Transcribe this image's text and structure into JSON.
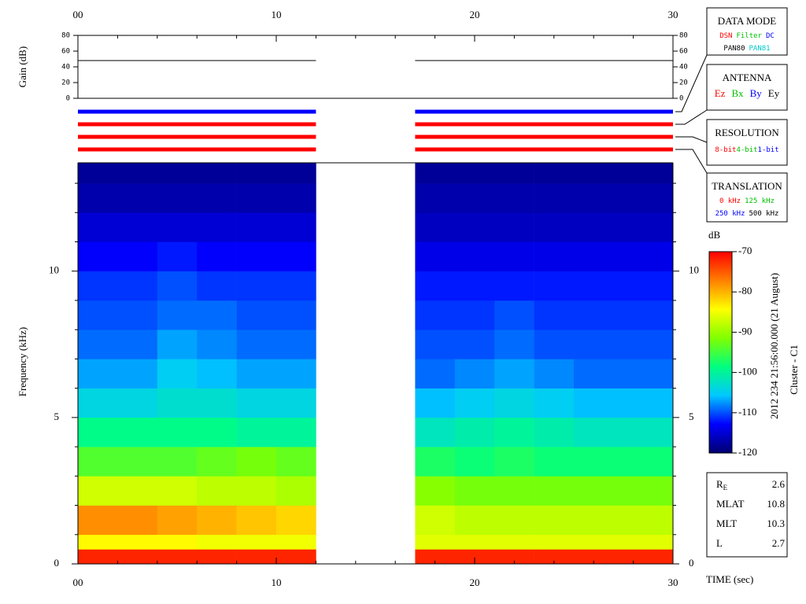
{
  "chart_data": [
    {
      "type": "line",
      "ylabel": "Gain (dB)",
      "xlim": [
        0,
        30
      ],
      "xticks": [
        {
          "value": 0,
          "label": "00"
        },
        10,
        20,
        30
      ],
      "xminorticks": [
        2,
        4,
        6,
        8,
        12,
        14,
        16,
        18,
        22,
        24,
        26,
        28
      ],
      "ylim": [
        0,
        80
      ],
      "yticks": [
        0,
        20,
        40,
        60,
        80
      ],
      "series": [
        {
          "color": "#000000",
          "x": [
            0,
            12,
            14.5,
            17,
            30
          ],
          "values": [
            48,
            48,
            null,
            48,
            48
          ]
        }
      ]
    },
    {
      "type": "status",
      "xlim": [
        0,
        30
      ],
      "rows": [
        {
          "color": "#0000ff",
          "segments": [
            [
              0,
              12
            ],
            [
              17,
              30
            ]
          ]
        },
        {
          "color": "#ff0000",
          "segments": [
            [
              0,
              12
            ],
            [
              17,
              30
            ]
          ]
        },
        {
          "color": "#ff0000",
          "segments": [
            [
              0,
              12
            ],
            [
              17,
              30
            ]
          ]
        },
        {
          "color": "#ff0000",
          "segments": [
            [
              0,
              12
            ],
            [
              17,
              30
            ]
          ]
        }
      ]
    },
    {
      "type": "heatmap",
      "ylabel": "Frequency (kHz)",
      "xlabel": "TIME (sec)",
      "xlim": [
        0,
        30
      ],
      "xticks": [
        {
          "value": 0,
          "label": "00"
        },
        10,
        20,
        30
      ],
      "xminorticks": [
        2,
        4,
        6,
        8,
        12,
        14,
        16,
        18,
        22,
        24,
        26,
        28
      ],
      "ylim": [
        0,
        13.7
      ],
      "yticks": [
        0,
        5,
        10
      ],
      "yminorticks": [
        1,
        2,
        3,
        4,
        6,
        7,
        8,
        9,
        11,
        12,
        13
      ],
      "x_edges": [
        0,
        2,
        4,
        6,
        8,
        10,
        12,
        17,
        19,
        21,
        23,
        25,
        27,
        29,
        30
      ],
      "y_edges": [
        0,
        0.5,
        1,
        2,
        3,
        4,
        5,
        6,
        7,
        8,
        9,
        10,
        11,
        12,
        13,
        13.7
      ],
      "z": [
        [
          -72,
          -72,
          -72,
          -72,
          -72,
          -72,
          null,
          -72,
          -72,
          -72,
          -72,
          -72,
          -72,
          -72
        ],
        [
          -84,
          -84,
          -84,
          -85,
          -85,
          -85,
          null,
          -86,
          -86,
          -86,
          -86,
          -86,
          -86,
          -86
        ],
        [
          -78,
          -78,
          -79,
          -80,
          -81,
          -82,
          null,
          -87,
          -88,
          -88,
          -88,
          -88,
          -88,
          -88
        ],
        [
          -87,
          -87,
          -87,
          -88,
          -88,
          -89,
          null,
          -91,
          -92,
          -92,
          -92,
          -92,
          -92,
          -92
        ],
        [
          -94,
          -94,
          -94,
          -93,
          -92,
          -93,
          null,
          -97,
          -98,
          -97,
          -98,
          -98,
          -98,
          -98
        ],
        [
          -99,
          -99,
          -99,
          -99,
          -100,
          -100,
          null,
          -102,
          -101,
          -100,
          -101,
          -102,
          -102,
          -102
        ],
        [
          -104,
          -104,
          -103,
          -103,
          -104,
          -104,
          null,
          -106,
          -105,
          -104,
          -105,
          -106,
          -106,
          -106
        ],
        [
          -107,
          -107,
          -105,
          -106,
          -107,
          -107,
          null,
          -109,
          -108,
          -107,
          -108,
          -109,
          -109,
          -109
        ],
        [
          -109,
          -109,
          -107,
          -108,
          -109,
          -109,
          null,
          -110,
          -110,
          -109,
          -110,
          -110,
          -110,
          -110
        ],
        [
          -110,
          -110,
          -109,
          -109,
          -110,
          -110,
          null,
          -111,
          -111,
          -110,
          -111,
          -111,
          -111,
          -111
        ],
        [
          -111,
          -111,
          -110,
          -111,
          -111,
          -111,
          null,
          -112,
          -112,
          -112,
          -112,
          -112,
          -112,
          -112
        ],
        [
          -113,
          -113,
          -112,
          -113,
          -113,
          -113,
          null,
          -114,
          -114,
          -114,
          -114,
          -114,
          -114,
          -114
        ],
        [
          -115,
          -115,
          -115,
          -115,
          -115,
          -115,
          null,
          -116,
          -116,
          -116,
          -116,
          -116,
          -116,
          -116
        ],
        [
          -117,
          -117,
          -117,
          -117,
          -117,
          -117,
          null,
          -117,
          -117,
          -117,
          -117,
          -117,
          -117,
          -117
        ],
        [
          -118,
          -118,
          -118,
          -118,
          -118,
          -118,
          null,
          -118,
          -118,
          -118,
          -118,
          -118,
          -118,
          -118
        ]
      ],
      "colorbar": {
        "label": "dB",
        "zlim": [
          -120,
          -70
        ],
        "ticks": [
          -120,
          -110,
          -100,
          -90,
          -80,
          -70
        ],
        "colors": [
          "#000070",
          "#0000ff",
          "#00c8ff",
          "#00ff80",
          "#80ff00",
          "#ffff00",
          "#ff8000",
          "#ff0000"
        ]
      }
    }
  ],
  "panels": [
    {
      "title": "DATA MODE",
      "rows": [
        [
          {
            "text": "DSN",
            "color": "#ff0000"
          },
          {
            "text": "Filter",
            "color": "#00c000"
          },
          {
            "text": "DC",
            "color": "#0000ff"
          }
        ],
        [
          {
            "text": "PAN80",
            "color": "#000000"
          },
          {
            "text": "PAN81",
            "color": "#00c8c8"
          }
        ]
      ]
    },
    {
      "title": "ANTENNA",
      "rows": [
        [
          {
            "text": "Ez",
            "color": "#ff0000"
          },
          {
            "text": "Bx",
            "color": "#00c000"
          },
          {
            "text": "By",
            "color": "#0000ff"
          },
          {
            "text": "Ey",
            "color": "#000000"
          }
        ]
      ]
    },
    {
      "title": "RESOLUTION",
      "rows": [
        [
          {
            "text": "8-bit",
            "color": "#ff0000"
          },
          {
            "text": "4-bit",
            "color": "#00c000"
          },
          {
            "text": "1-bit",
            "color": "#0000ff"
          }
        ]
      ]
    },
    {
      "title": "TRANSLATION",
      "rows": [
        [
          {
            "text": "0 kHz",
            "color": "#ff0000"
          },
          {
            "text": "125 kHz",
            "color": "#00c000"
          }
        ],
        [
          {
            "text": "250 kHz",
            "color": "#0000ff"
          },
          {
            "text": "500 kHz",
            "color": "#000000"
          }
        ]
      ]
    }
  ],
  "event": {
    "date": "2012 234 21:56:00.000 (21 August)",
    "spacecraft": "Cluster - C1"
  },
  "info": [
    {
      "label": "R",
      "sub": "E",
      "value": "2.6"
    },
    {
      "label": "MLAT",
      "value": "10.8"
    },
    {
      "label": "MLT",
      "value": "10.3"
    },
    {
      "label": "L",
      "value": "2.7"
    }
  ]
}
